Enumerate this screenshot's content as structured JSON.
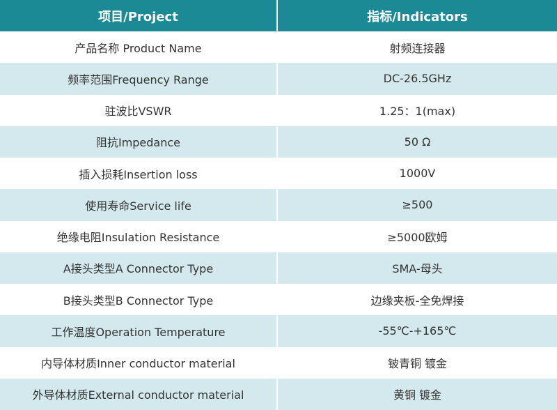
{
  "table": {
    "header": [
      "项目/Project",
      "指标/Indicators"
    ],
    "rows": [
      [
        "产品名称 Product Name",
        "射频连接器"
      ],
      [
        "频率范围Frequency Range",
        "DC-26.5GHz"
      ],
      [
        "驻波比VSWR",
        "1.25：1(max)"
      ],
      [
        "阻抗Impedance",
        "50 Ω"
      ],
      [
        "插入损耗Insertion loss",
        "1000V"
      ],
      [
        "使用寿命Service life",
        "≥500"
      ],
      [
        "绝缘电阻Insulation Resistance",
        "≥5000欧姆"
      ],
      [
        "A接头类型A Connector Type",
        "SMA-母头"
      ],
      [
        "B接头类型B Connector Type",
        "边缘夹板-全免焊接"
      ],
      [
        "工作温度Operation Temperature",
        "-55℃-+165℃"
      ],
      [
        "内导体材质Inner conductor material",
        "铍青铜 镀金"
      ],
      [
        "外导体材质External conductor material",
        "黄铜 镀金"
      ]
    ]
  }
}
